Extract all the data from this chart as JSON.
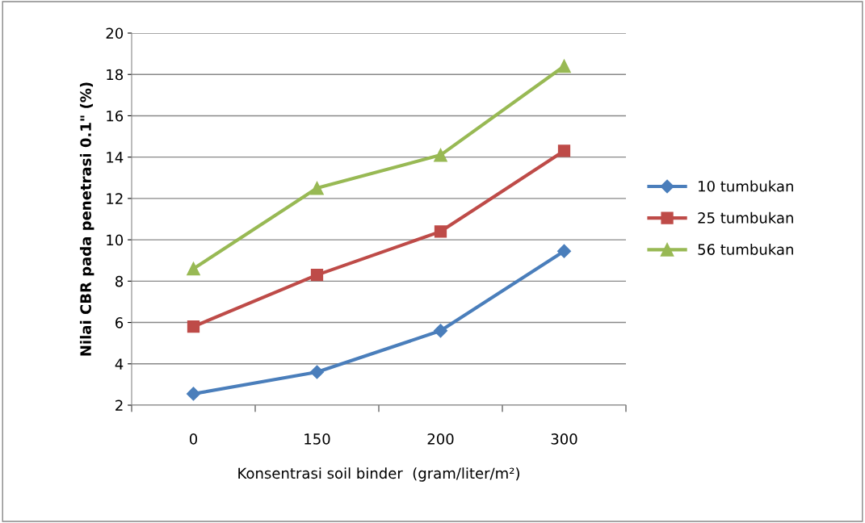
{
  "chart_data": {
    "type": "line",
    "xlabel": "Konsentrasi soil binder  (gram/liter/m²)",
    "ylabel": "Nilai CBR pada penetrasi 0.1\" (%)",
    "categories": [
      "0",
      "150",
      "200",
      "300"
    ],
    "series": [
      {
        "name": "10 tumbukan",
        "color": "#4a7ebb",
        "marker": "diamond",
        "values": [
          2.55,
          3.6,
          5.6,
          9.45
        ]
      },
      {
        "name": "25 tumbukan",
        "color": "#be4b48",
        "marker": "square",
        "values": [
          5.8,
          8.3,
          10.4,
          14.3
        ]
      },
      {
        "name": "56 tumbukan",
        "color": "#98b954",
        "marker": "triangle",
        "values": [
          8.6,
          12.5,
          14.1,
          18.4
        ]
      }
    ],
    "ylim": [
      2,
      20
    ],
    "yticks": [
      2,
      4,
      6,
      8,
      10,
      12,
      14,
      16,
      18,
      20
    ],
    "grid": "y",
    "legend": "right",
    "line_style": "solid"
  }
}
